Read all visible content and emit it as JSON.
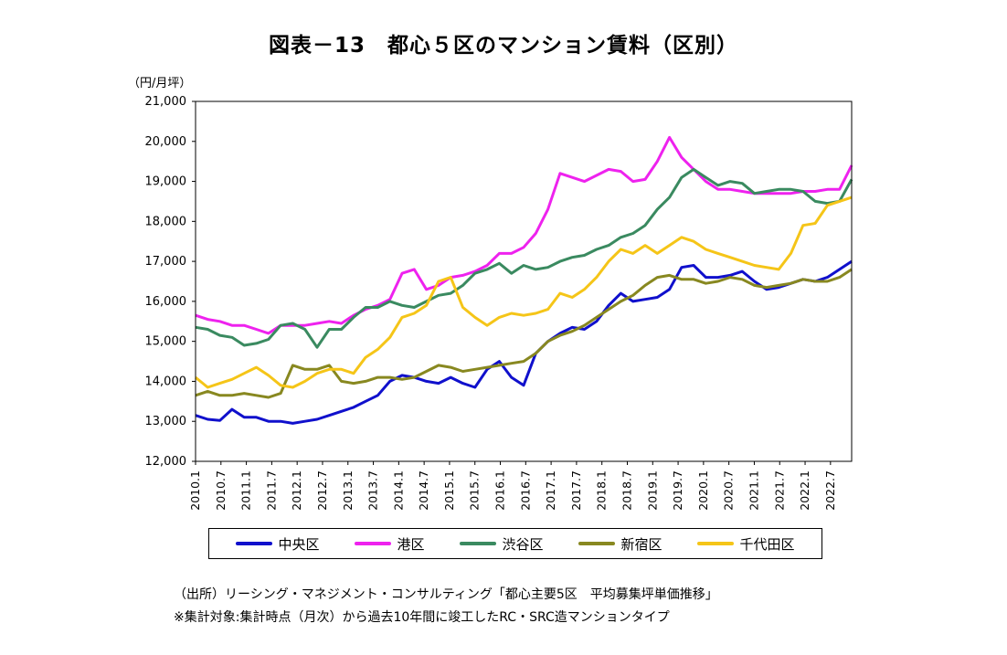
{
  "chart_data": {
    "type": "line",
    "title": "図表－13　都心５区のマンション賃料（区別）",
    "ylabel": "（円/月坪）",
    "xlabel": "",
    "ylim": [
      12000,
      21000
    ],
    "yticks": [
      "12,000",
      "13,000",
      "14,000",
      "15,000",
      "16,000",
      "17,000",
      "18,000",
      "19,000",
      "20,000",
      "21,000"
    ],
    "xticks": [
      "2010.1",
      "2010.7",
      "2011.1",
      "2011.7",
      "2012.1",
      "2012.7",
      "2013.1",
      "2013.7",
      "2014.1",
      "2014.7",
      "2015.1",
      "2015.7",
      "2016.1",
      "2016.7",
      "2017.1",
      "2017.7",
      "2018.1",
      "2018.7",
      "2019.1",
      "2019.7",
      "2020.1",
      "2020.7",
      "2021.1",
      "2021.7",
      "2022.1",
      "2022.7"
    ],
    "x_start": "2010.1",
    "x_end": "2022.12",
    "grid": false,
    "legend_position": "bottom",
    "series": [
      {
        "name": "中央区",
        "color": "#1010cc",
        "values": [
          13150,
          13050,
          13020,
          13300,
          13100,
          13100,
          13000,
          13000,
          12950,
          13000,
          13050,
          13150,
          13250,
          13350,
          13500,
          13650,
          14000,
          14150,
          14100,
          14000,
          13950,
          14100,
          13950,
          13850,
          14300,
          14500,
          14100,
          13900,
          14700,
          15000,
          15200,
          15350,
          15300,
          15500,
          15900,
          16200,
          16000,
          16050,
          16100,
          16300,
          16850,
          16900,
          16600,
          16600,
          16650,
          16750,
          16500,
          16300,
          16350,
          16450,
          16550,
          16500,
          16600,
          16800,
          17000
        ]
      },
      {
        "name": "港区",
        "color": "#ee22ee",
        "values": [
          15650,
          15550,
          15500,
          15400,
          15400,
          15300,
          15200,
          15400,
          15400,
          15400,
          15450,
          15500,
          15450,
          15650,
          15800,
          15900,
          16050,
          16700,
          16800,
          16300,
          16400,
          16600,
          16650,
          16750,
          16900,
          17200,
          17200,
          17350,
          17700,
          18300,
          19200,
          19100,
          19000,
          19150,
          19300,
          19250,
          19000,
          19050,
          19500,
          20100,
          19600,
          19300,
          19000,
          18800,
          18800,
          18750,
          18700,
          18700,
          18700,
          18700,
          18750,
          18750,
          18800,
          18800,
          19400
        ]
      },
      {
        "name": "渋谷区",
        "color": "#3a8a60",
        "values": [
          15350,
          15300,
          15150,
          15100,
          14900,
          14950,
          15050,
          15400,
          15450,
          15300,
          14850,
          15300,
          15300,
          15600,
          15850,
          15850,
          16000,
          15900,
          15850,
          16000,
          16150,
          16200,
          16400,
          16700,
          16800,
          16950,
          16700,
          16900,
          16800,
          16850,
          17000,
          17100,
          17150,
          17300,
          17400,
          17600,
          17700,
          17900,
          18300,
          18600,
          19100,
          19300,
          19100,
          18900,
          19000,
          18950,
          18700,
          18750,
          18800,
          18800,
          18750,
          18500,
          18450,
          18500,
          19050
        ]
      },
      {
        "name": "新宿区",
        "color": "#888820",
        "values": [
          13650,
          13750,
          13650,
          13650,
          13700,
          13650,
          13600,
          13700,
          14400,
          14300,
          14300,
          14400,
          14000,
          13950,
          14000,
          14100,
          14100,
          14050,
          14100,
          14250,
          14400,
          14350,
          14250,
          14300,
          14350,
          14400,
          14450,
          14500,
          14700,
          15000,
          15150,
          15250,
          15400,
          15600,
          15800,
          16000,
          16150,
          16400,
          16600,
          16650,
          16550,
          16550,
          16450,
          16500,
          16600,
          16550,
          16400,
          16350,
          16400,
          16450,
          16550,
          16500,
          16500,
          16600,
          16800
        ]
      },
      {
        "name": "千代田区",
        "color": "#f5c518",
        "values": [
          14100,
          13850,
          13950,
          14050,
          14200,
          14350,
          14150,
          13900,
          13850,
          14000,
          14200,
          14300,
          14300,
          14200,
          14600,
          14800,
          15100,
          15600,
          15700,
          15900,
          16500,
          16600,
          15850,
          15600,
          15400,
          15600,
          15700,
          15650,
          15700,
          15800,
          16200,
          16100,
          16300,
          16600,
          17000,
          17300,
          17200,
          17400,
          17200,
          17400,
          17600,
          17500,
          17300,
          17200,
          17100,
          17000,
          16900,
          16850,
          16800,
          17200,
          17900,
          17950,
          18400,
          18500,
          18600
        ]
      }
    ]
  },
  "legend": {
    "items": [
      {
        "label": "中央区",
        "color": "#1010cc"
      },
      {
        "label": "港区",
        "color": "#ee22ee"
      },
      {
        "label": "渋谷区",
        "color": "#3a8a60"
      },
      {
        "label": "新宿区",
        "color": "#888820"
      },
      {
        "label": "千代田区",
        "color": "#f5c518"
      }
    ]
  },
  "notes": {
    "source": "（出所）リーシング・マネジメント・コンサルティング「都心主要5区　平均募集坪単価推移」",
    "target": "※集計対象:集計時点（月次）から過去10年間に竣工したRC・SRC造マンションタイプ"
  }
}
